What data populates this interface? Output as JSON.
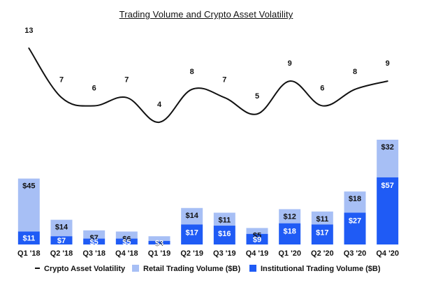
{
  "chart_data": {
    "type": "bar",
    "title": "Trading Volume and Crypto Asset Volatility",
    "categories": [
      "Q1 '18",
      "Q2 '18",
      "Q3 '18",
      "Q4 '18",
      "Q1 '19",
      "Q2 '19",
      "Q3 '19",
      "Q4 '19",
      "Q1 '20",
      "Q2 '20",
      "Q3 '20",
      "Q4 '20"
    ],
    "series": [
      {
        "name": "Institutional Trading Volume ($B)",
        "kind": "bar",
        "stack": "volume",
        "color": "#1f5bf5",
        "values": [
          11,
          7,
          5,
          5,
          3,
          17,
          16,
          9,
          18,
          17,
          27,
          57
        ],
        "labels": [
          "$11",
          "$7",
          "$5",
          "$5",
          "$3",
          "$17",
          "$16",
          "$9",
          "$18",
          "$17",
          "$27",
          "$57"
        ]
      },
      {
        "name": "Retail Trading Volume ($B)",
        "kind": "bar",
        "stack": "volume",
        "color": "#a7bff5",
        "values": [
          45,
          14,
          7,
          6,
          4,
          14,
          11,
          5,
          12,
          11,
          18,
          32
        ],
        "labels": [
          "$45",
          "$14",
          "$7",
          "$6",
          "$4",
          "$14",
          "$11",
          "$5",
          "$12",
          "$11",
          "$18",
          "$32"
        ]
      },
      {
        "name": "Crypto Asset Volatility",
        "kind": "line",
        "color": "#111111",
        "values": [
          13,
          7,
          6,
          7,
          4,
          8,
          7,
          5,
          9,
          6,
          8,
          9
        ],
        "labels": [
          "13",
          "7",
          "6",
          "7",
          "4",
          "8",
          "7",
          "5",
          "9",
          "6",
          "8",
          "9"
        ]
      }
    ],
    "legend_order": [
      "Crypto Asset Volatility",
      "Retail Trading Volume ($B)",
      "Institutional Trading Volume ($B)"
    ],
    "xlabel": "",
    "ylabel": "",
    "grid": false,
    "legend_position": "bottom"
  }
}
